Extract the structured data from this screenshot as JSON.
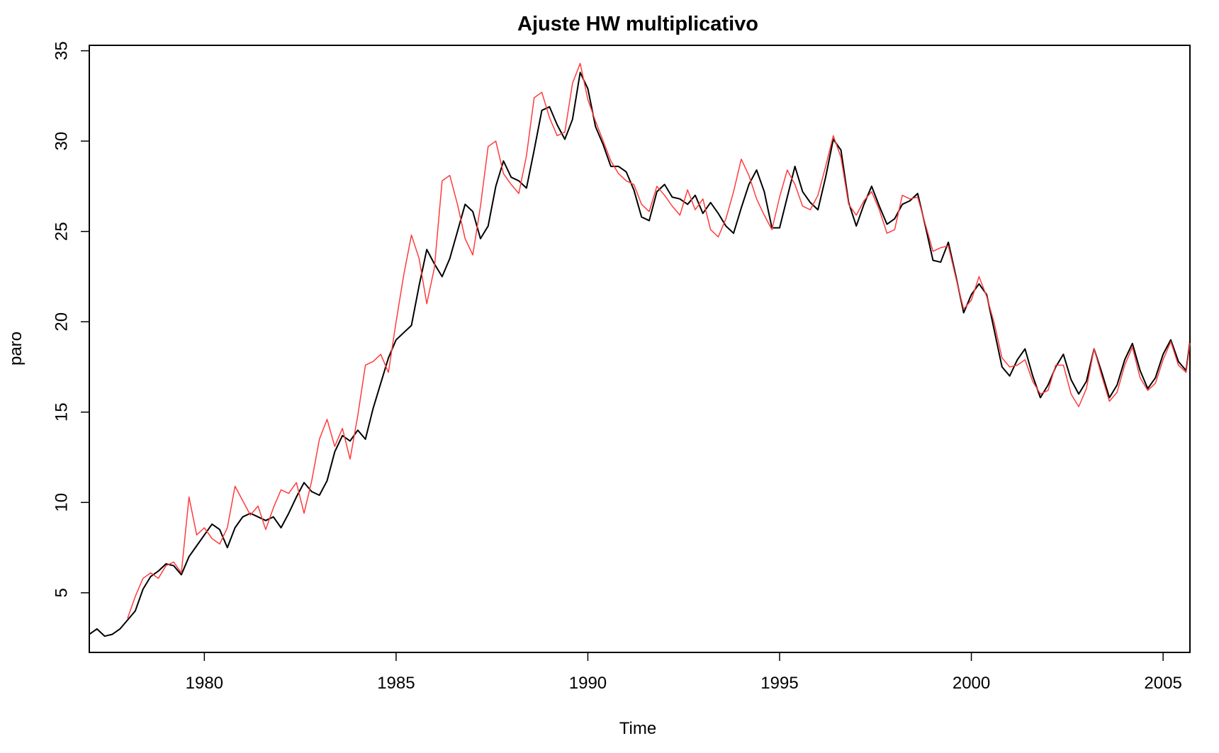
{
  "chart_data": {
    "type": "line",
    "title": "Ajuste HW multiplicativo",
    "xlabel": "Time",
    "ylabel": "paro",
    "xlim": [
      1977.0,
      2005.7
    ],
    "ylim": [
      1.7,
      35.3
    ],
    "x_ticks": [
      1980,
      1985,
      1990,
      1995,
      2000,
      2005
    ],
    "y_ticks": [
      5,
      10,
      15,
      20,
      25,
      30,
      35
    ],
    "grid": false,
    "legend": "none",
    "series": [
      {
        "color": "#000000",
        "points": [
          [
            1977.0,
            2.7
          ],
          [
            1977.2,
            3.0
          ],
          [
            1977.4,
            2.6
          ],
          [
            1977.6,
            2.7
          ],
          [
            1977.8,
            3.0
          ],
          [
            1978.0,
            3.5
          ],
          [
            1978.2,
            4.0
          ],
          [
            1978.4,
            5.2
          ],
          [
            1978.6,
            5.9
          ],
          [
            1978.8,
            6.2
          ],
          [
            1979.0,
            6.6
          ],
          [
            1979.2,
            6.5
          ],
          [
            1979.4,
            6.0
          ],
          [
            1979.6,
            7.0
          ],
          [
            1979.8,
            7.6
          ],
          [
            1980.0,
            8.2
          ],
          [
            1980.2,
            8.8
          ],
          [
            1980.4,
            8.5
          ],
          [
            1980.6,
            7.5
          ],
          [
            1980.8,
            8.6
          ],
          [
            1981.0,
            9.2
          ],
          [
            1981.2,
            9.4
          ],
          [
            1981.4,
            9.2
          ],
          [
            1981.6,
            9.0
          ],
          [
            1981.8,
            9.2
          ],
          [
            1982.0,
            8.6
          ],
          [
            1982.2,
            9.4
          ],
          [
            1982.4,
            10.3
          ],
          [
            1982.6,
            11.1
          ],
          [
            1982.8,
            10.6
          ],
          [
            1983.0,
            10.4
          ],
          [
            1983.2,
            11.2
          ],
          [
            1983.4,
            12.8
          ],
          [
            1983.6,
            13.7
          ],
          [
            1983.8,
            13.4
          ],
          [
            1984.0,
            14.0
          ],
          [
            1984.2,
            13.5
          ],
          [
            1984.4,
            15.2
          ],
          [
            1984.6,
            16.6
          ],
          [
            1984.8,
            18.0
          ],
          [
            1985.0,
            19.0
          ],
          [
            1985.2,
            19.4
          ],
          [
            1985.4,
            19.8
          ],
          [
            1985.6,
            22.0
          ],
          [
            1985.8,
            24.0
          ],
          [
            1986.0,
            23.2
          ],
          [
            1986.2,
            22.5
          ],
          [
            1986.4,
            23.5
          ],
          [
            1986.6,
            25.0
          ],
          [
            1986.8,
            26.5
          ],
          [
            1987.0,
            26.1
          ],
          [
            1987.2,
            24.6
          ],
          [
            1987.4,
            25.3
          ],
          [
            1987.6,
            27.5
          ],
          [
            1987.8,
            28.9
          ],
          [
            1988.0,
            28.0
          ],
          [
            1988.2,
            27.8
          ],
          [
            1988.4,
            27.4
          ],
          [
            1988.6,
            29.5
          ],
          [
            1988.8,
            31.7
          ],
          [
            1989.0,
            31.9
          ],
          [
            1989.2,
            30.9
          ],
          [
            1989.4,
            30.1
          ],
          [
            1989.6,
            31.2
          ],
          [
            1989.8,
            33.8
          ],
          [
            1990.0,
            32.9
          ],
          [
            1990.2,
            30.8
          ],
          [
            1990.4,
            29.8
          ],
          [
            1990.6,
            28.6
          ],
          [
            1990.8,
            28.6
          ],
          [
            1991.0,
            28.3
          ],
          [
            1991.2,
            27.3
          ],
          [
            1991.4,
            25.8
          ],
          [
            1991.6,
            25.6
          ],
          [
            1991.8,
            27.2
          ],
          [
            1992.0,
            27.6
          ],
          [
            1992.2,
            26.9
          ],
          [
            1992.4,
            26.8
          ],
          [
            1992.6,
            26.5
          ],
          [
            1992.8,
            27.0
          ],
          [
            1993.0,
            26.0
          ],
          [
            1993.2,
            26.6
          ],
          [
            1993.4,
            26.0
          ],
          [
            1993.6,
            25.3
          ],
          [
            1993.8,
            24.9
          ],
          [
            1994.0,
            26.3
          ],
          [
            1994.2,
            27.6
          ],
          [
            1994.4,
            28.4
          ],
          [
            1994.6,
            27.2
          ],
          [
            1994.8,
            25.2
          ],
          [
            1995.0,
            25.2
          ],
          [
            1995.2,
            26.9
          ],
          [
            1995.4,
            28.6
          ],
          [
            1995.6,
            27.2
          ],
          [
            1995.8,
            26.6
          ],
          [
            1996.0,
            26.2
          ],
          [
            1996.2,
            28.0
          ],
          [
            1996.4,
            30.1
          ],
          [
            1996.6,
            29.5
          ],
          [
            1996.8,
            26.6
          ],
          [
            1997.0,
            25.3
          ],
          [
            1997.2,
            26.5
          ],
          [
            1997.4,
            27.5
          ],
          [
            1997.6,
            26.4
          ],
          [
            1997.8,
            25.4
          ],
          [
            1998.0,
            25.7
          ],
          [
            1998.2,
            26.5
          ],
          [
            1998.4,
            26.7
          ],
          [
            1998.6,
            27.1
          ],
          [
            1998.8,
            25.3
          ],
          [
            1999.0,
            23.4
          ],
          [
            1999.2,
            23.3
          ],
          [
            1999.4,
            24.4
          ],
          [
            1999.6,
            22.5
          ],
          [
            1999.8,
            20.5
          ],
          [
            2000.0,
            21.5
          ],
          [
            2000.2,
            22.1
          ],
          [
            2000.4,
            21.5
          ],
          [
            2000.6,
            19.5
          ],
          [
            2000.8,
            17.5
          ],
          [
            2001.0,
            17.0
          ],
          [
            2001.2,
            17.9
          ],
          [
            2001.4,
            18.5
          ],
          [
            2001.6,
            17.0
          ],
          [
            2001.8,
            15.8
          ],
          [
            2002.0,
            16.5
          ],
          [
            2002.2,
            17.5
          ],
          [
            2002.4,
            18.2
          ],
          [
            2002.6,
            16.8
          ],
          [
            2002.8,
            16.0
          ],
          [
            2003.0,
            16.7
          ],
          [
            2003.2,
            18.5
          ],
          [
            2003.4,
            17.2
          ],
          [
            2003.6,
            15.8
          ],
          [
            2003.8,
            16.5
          ],
          [
            2004.0,
            17.9
          ],
          [
            2004.2,
            18.8
          ],
          [
            2004.4,
            17.3
          ],
          [
            2004.6,
            16.3
          ],
          [
            2004.8,
            16.9
          ],
          [
            2005.0,
            18.2
          ],
          [
            2005.2,
            19.0
          ],
          [
            2005.4,
            17.8
          ],
          [
            2005.6,
            17.3
          ],
          [
            2005.7,
            18.9
          ]
        ]
      },
      {
        "color": "#ff3b3b",
        "points": [
          [
            1978.0,
            3.6
          ],
          [
            1978.2,
            4.8
          ],
          [
            1978.4,
            5.8
          ],
          [
            1978.6,
            6.1
          ],
          [
            1978.8,
            5.8
          ],
          [
            1979.0,
            6.5
          ],
          [
            1979.2,
            6.7
          ],
          [
            1979.4,
            6.1
          ],
          [
            1979.6,
            10.3
          ],
          [
            1979.8,
            8.2
          ],
          [
            1980.0,
            8.6
          ],
          [
            1980.2,
            8.0
          ],
          [
            1980.4,
            7.7
          ],
          [
            1980.6,
            8.6
          ],
          [
            1980.8,
            10.9
          ],
          [
            1981.0,
            10.1
          ],
          [
            1981.2,
            9.3
          ],
          [
            1981.4,
            9.8
          ],
          [
            1981.6,
            8.5
          ],
          [
            1981.8,
            9.7
          ],
          [
            1982.0,
            10.7
          ],
          [
            1982.2,
            10.5
          ],
          [
            1982.4,
            11.1
          ],
          [
            1982.6,
            9.4
          ],
          [
            1982.8,
            11.2
          ],
          [
            1983.0,
            13.5
          ],
          [
            1983.2,
            14.6
          ],
          [
            1983.4,
            13.1
          ],
          [
            1983.6,
            14.1
          ],
          [
            1983.8,
            12.4
          ],
          [
            1984.0,
            14.8
          ],
          [
            1984.2,
            17.6
          ],
          [
            1984.4,
            17.8
          ],
          [
            1984.6,
            18.2
          ],
          [
            1984.8,
            17.2
          ],
          [
            1985.0,
            20.0
          ],
          [
            1985.2,
            22.6
          ],
          [
            1985.4,
            24.8
          ],
          [
            1985.6,
            23.5
          ],
          [
            1985.8,
            21.0
          ],
          [
            1986.0,
            23.0
          ],
          [
            1986.2,
            27.8
          ],
          [
            1986.4,
            28.1
          ],
          [
            1986.6,
            26.5
          ],
          [
            1986.8,
            24.6
          ],
          [
            1987.0,
            23.7
          ],
          [
            1987.2,
            26.4
          ],
          [
            1987.4,
            29.7
          ],
          [
            1987.6,
            30.0
          ],
          [
            1987.8,
            28.2
          ],
          [
            1988.0,
            27.6
          ],
          [
            1988.2,
            27.1
          ],
          [
            1988.4,
            29.2
          ],
          [
            1988.6,
            32.4
          ],
          [
            1988.8,
            32.7
          ],
          [
            1989.0,
            31.3
          ],
          [
            1989.2,
            30.3
          ],
          [
            1989.4,
            30.5
          ],
          [
            1989.6,
            33.2
          ],
          [
            1989.8,
            34.3
          ],
          [
            1990.0,
            32.3
          ],
          [
            1990.2,
            31.1
          ],
          [
            1990.4,
            30.0
          ],
          [
            1990.6,
            28.9
          ],
          [
            1990.8,
            28.2
          ],
          [
            1991.0,
            27.8
          ],
          [
            1991.2,
            27.6
          ],
          [
            1991.4,
            26.5
          ],
          [
            1991.6,
            26.1
          ],
          [
            1991.8,
            27.5
          ],
          [
            1992.0,
            27.0
          ],
          [
            1992.2,
            26.4
          ],
          [
            1992.4,
            25.9
          ],
          [
            1992.6,
            27.3
          ],
          [
            1992.8,
            26.2
          ],
          [
            1993.0,
            26.8
          ],
          [
            1993.2,
            25.1
          ],
          [
            1993.4,
            24.7
          ],
          [
            1993.6,
            25.7
          ],
          [
            1993.8,
            27.2
          ],
          [
            1994.0,
            29.0
          ],
          [
            1994.2,
            28.1
          ],
          [
            1994.4,
            26.8
          ],
          [
            1994.6,
            25.9
          ],
          [
            1994.8,
            25.1
          ],
          [
            1995.0,
            26.9
          ],
          [
            1995.2,
            28.4
          ],
          [
            1995.4,
            27.6
          ],
          [
            1995.6,
            26.4
          ],
          [
            1995.8,
            26.2
          ],
          [
            1996.0,
            27.0
          ],
          [
            1996.2,
            28.6
          ],
          [
            1996.4,
            30.3
          ],
          [
            1996.6,
            29.1
          ],
          [
            1996.8,
            26.5
          ],
          [
            1997.0,
            25.9
          ],
          [
            1997.2,
            26.7
          ],
          [
            1997.4,
            27.2
          ],
          [
            1997.6,
            26.2
          ],
          [
            1997.8,
            24.9
          ],
          [
            1998.0,
            25.1
          ],
          [
            1998.2,
            27.0
          ],
          [
            1998.4,
            26.8
          ],
          [
            1998.6,
            26.9
          ],
          [
            1998.8,
            25.4
          ],
          [
            1999.0,
            23.9
          ],
          [
            1999.2,
            24.1
          ],
          [
            1999.4,
            24.2
          ],
          [
            1999.6,
            22.4
          ],
          [
            1999.8,
            20.7
          ],
          [
            2000.0,
            21.2
          ],
          [
            2000.2,
            22.5
          ],
          [
            2000.4,
            21.4
          ],
          [
            2000.6,
            19.9
          ],
          [
            2000.8,
            18.0
          ],
          [
            2001.0,
            17.5
          ],
          [
            2001.2,
            17.6
          ],
          [
            2001.4,
            17.9
          ],
          [
            2001.6,
            16.7
          ],
          [
            2001.8,
            16.0
          ],
          [
            2002.0,
            16.2
          ],
          [
            2002.2,
            17.6
          ],
          [
            2002.4,
            17.6
          ],
          [
            2002.6,
            16.0
          ],
          [
            2002.8,
            15.3
          ],
          [
            2003.0,
            16.3
          ],
          [
            2003.2,
            18.5
          ],
          [
            2003.4,
            17.0
          ],
          [
            2003.6,
            15.6
          ],
          [
            2003.8,
            16.1
          ],
          [
            2004.0,
            17.6
          ],
          [
            2004.2,
            18.6
          ],
          [
            2004.4,
            16.9
          ],
          [
            2004.6,
            16.2
          ],
          [
            2004.8,
            16.6
          ],
          [
            2005.0,
            17.9
          ],
          [
            2005.2,
            18.9
          ],
          [
            2005.4,
            17.6
          ],
          [
            2005.6,
            17.2
          ],
          [
            2005.7,
            18.8
          ]
        ]
      }
    ]
  }
}
